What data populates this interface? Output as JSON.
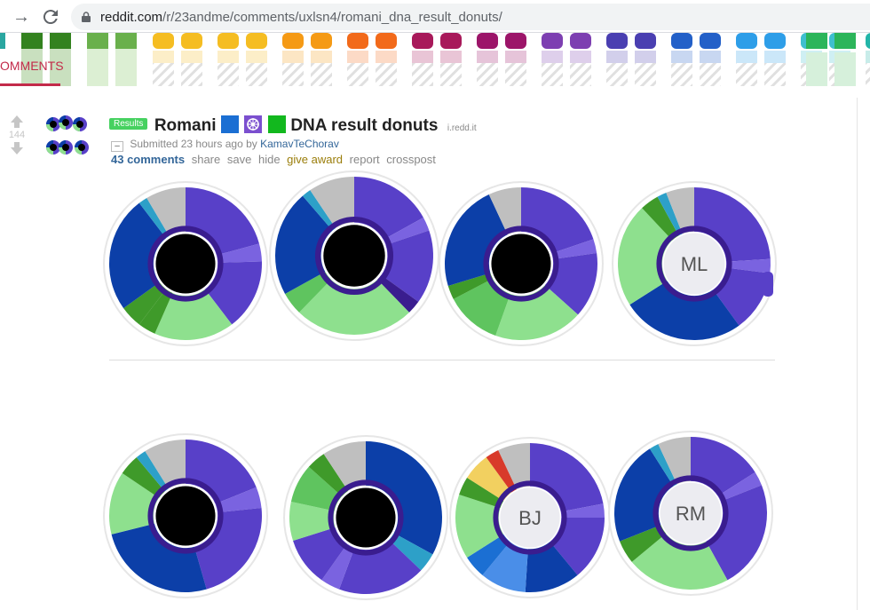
{
  "browser": {
    "url_domain": "reddit.com",
    "url_path": "/r/23andme/comments/uxlsn4/romani_dna_result_donuts/",
    "back_icon": "arrow-right-icon",
    "reload_icon": "reload-icon"
  },
  "banner": {
    "tab_label": "OMMENTS"
  },
  "post": {
    "score": "144",
    "flair": "Results",
    "title_word": "Romani",
    "title_rest": "DNA result donuts",
    "domain": "i.redd.it",
    "submitted": "Submitted 23 hours ago by",
    "author": "KamavTeChorav",
    "expando_glyph": "–",
    "actions": {
      "comments": "43 comments",
      "share": "share",
      "save": "save",
      "hide": "hide",
      "give_award": "give award",
      "report": "report",
      "crosspost": "crosspost"
    },
    "title_emoji_colors": [
      "#1b6fd3",
      "#7b4fcf",
      "#12b81e"
    ]
  },
  "donut_labels": {
    "d1_4": "ML",
    "d2_3": "BJ",
    "d2_4": "RM"
  },
  "colors": {
    "accent_red": "#c32a4a",
    "flair_green": "#46d160"
  }
}
